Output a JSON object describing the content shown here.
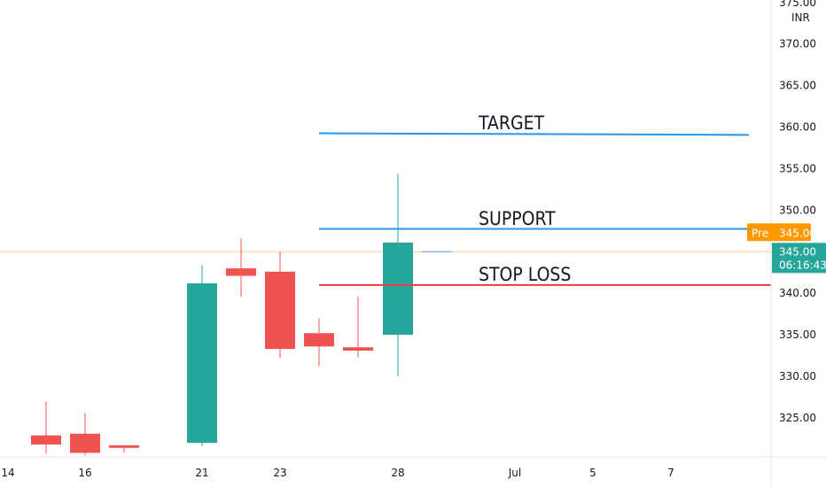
{
  "chart_data": {
    "type": "candlestick",
    "currency": "INR",
    "y_axis_ticks": [
      "325.00",
      "330.00",
      "335.00",
      "340.00",
      "345.00",
      "350.00",
      "355.00",
      "360.00",
      "365.00",
      "370.00",
      "375.00"
    ],
    "x_axis_ticks": [
      "14",
      "16",
      "21",
      "23",
      "28",
      "Jul",
      "5",
      "7"
    ],
    "ylim": [
      320.5,
      375.0
    ],
    "candles": [
      {
        "open": 322.9,
        "high": 327.0,
        "low": 320.7,
        "close": 321.8
      },
      {
        "open": 323.1,
        "high": 325.6,
        "low": 320.5,
        "close": 320.8
      },
      {
        "open": 321.7,
        "high": 321.7,
        "low": 320.8,
        "close": 321.4
      },
      {
        "open": 322.0,
        "high": 343.4,
        "low": 321.6,
        "close": 341.2
      },
      {
        "open": 343.0,
        "high": 346.6,
        "low": 339.6,
        "close": 342.1
      },
      {
        "open": 342.6,
        "high": 345.0,
        "low": 332.2,
        "close": 333.3
      },
      {
        "open": 335.2,
        "high": 337.0,
        "low": 331.2,
        "close": 333.6
      },
      {
        "open": 333.5,
        "high": 339.6,
        "low": 332.3,
        "close": 333.1
      },
      {
        "open": 335.0,
        "high": 354.4,
        "low": 330.0,
        "close": 346.1
      },
      {
        "open": 345.0,
        "high": 345.0,
        "low": 345.0,
        "close": 345.0
      }
    ],
    "annotations": [
      {
        "label": "TARGET",
        "price": 359.2,
        "color": "#2196f3"
      },
      {
        "label": "SUPPORT",
        "price": 347.7,
        "color": "#2196f3"
      },
      {
        "label": "STOP LOSS",
        "price": 341.0,
        "color": "#f23645"
      }
    ],
    "pre_market": {
      "label": "Pre",
      "value": "345.00",
      "color": "#ff9800"
    },
    "last_price": {
      "value": "345.00",
      "countdown": "06:16:43",
      "color": "#26a69a"
    },
    "up_color": "#26a69a",
    "down_color": "#ef5350"
  }
}
